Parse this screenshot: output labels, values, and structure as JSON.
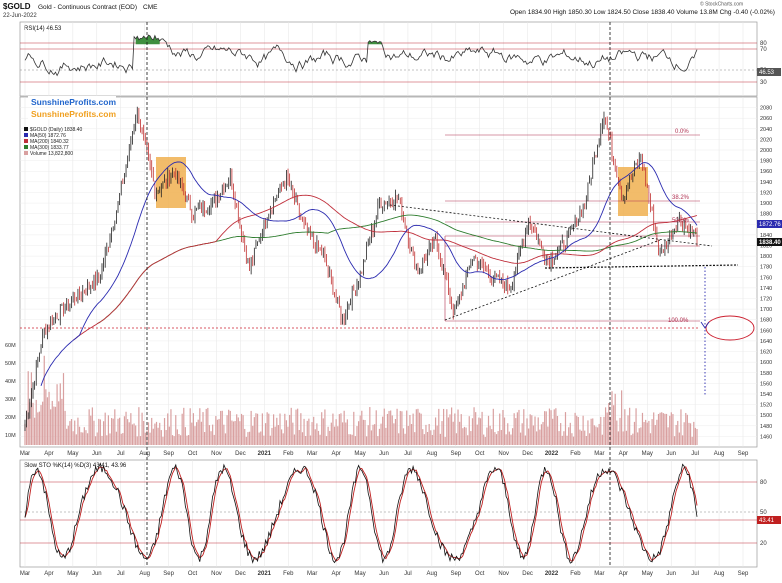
{
  "header": {
    "symbol": "$GOLD",
    "description": "Gold - Continuous Contract (EOD)",
    "exchange": "CME",
    "date": "22-Jun-2022",
    "stats_line": "Open 1834.90  High 1850.30  Low 1824.50  Close 1838.40  Volume 13.8M  Chg -0.40 (-0.02%)",
    "copyright": "© StockCharts.com"
  },
  "watermarks": [
    "SunshineProfits.com",
    "SunshineProfits.com"
  ],
  "colors": {
    "price_up": "#1a1a1a",
    "ma50": "#2b2bb0",
    "ma200": "#c0303c",
    "ma300": "#2f7d2f",
    "volume": "#d9a0a0",
    "fib": "#b03050",
    "rsi": "#333333",
    "rsi_fill": "#3f8f3f",
    "sto_k": "#111111",
    "sto_d": "#c02020",
    "highlight": "#f0b050"
  },
  "rsi_panel": {
    "label": "RSI(14) 46.53",
    "levels": [
      "80",
      "70",
      "50",
      "30"
    ],
    "current_tag": "46.53"
  },
  "price_panel": {
    "legend": [
      {
        "name": "$GOLD (Daily) 1838.40",
        "swatch": "#111111"
      },
      {
        "name": "MA(50) 1872.76",
        "swatch": "#2b2bb0"
      },
      {
        "name": "MA(200) 1840.32",
        "swatch": "#c0303c"
      },
      {
        "name": "MA(300) 1833.77",
        "swatch": "#2f7d2f"
      },
      {
        "name": "Volume 13,822,800",
        "swatch": "#d9a0a0"
      }
    ],
    "fib_labels": [
      "0.0%",
      "38.2%",
      "50.0%",
      "100.0%"
    ],
    "tags": [
      "1872.76",
      "1838.40"
    ],
    "volume_labels": [
      "60M",
      "50M",
      "40M",
      "30M",
      "20M",
      "10M"
    ]
  },
  "sto_panel": {
    "label": "Slow STO %K(14) %D(3) 43.41, 43.96",
    "levels": [
      "80",
      "50",
      "20"
    ],
    "current_tag": "43.41"
  },
  "x_axis_labels": [
    "Mar",
    "Apr",
    "May",
    "Jun",
    "Jul",
    "Aug",
    "Sep",
    "Oct",
    "Nov",
    "Dec",
    "2021",
    "Feb",
    "Mar",
    "Apr",
    "May",
    "Jun",
    "Jul",
    "Aug",
    "Sep",
    "Oct",
    "Nov",
    "Dec",
    "2022",
    "Feb",
    "Mar",
    "Apr",
    "May",
    "Jun",
    "Jul",
    "Aug",
    "Sep"
  ],
  "chart_data": {
    "type": "line",
    "ylabel": "",
    "xlabel": "",
    "ylim": [
      1440,
      2100
    ],
    "y_ticks": [
      2080,
      2060,
      2040,
      2020,
      2000,
      1980,
      1960,
      1940,
      1920,
      1900,
      1880,
      1860,
      1840,
      1820,
      1800,
      1780,
      1760,
      1740,
      1720,
      1700,
      1680,
      1660,
      1640,
      1620,
      1600,
      1580,
      1560,
      1540,
      1520,
      1500,
      1480,
      1460
    ],
    "price_anchor_points": [
      {
        "x": "2020-03",
        "y": 1480
      },
      {
        "x": "2020-03",
        "y": 1660
      },
      {
        "x": "2020-04",
        "y": 1700
      },
      {
        "x": "2020-05",
        "y": 1730
      },
      {
        "x": "2020-06",
        "y": 1760
      },
      {
        "x": "2020-07",
        "y": 1900
      },
      {
        "x": "2020-08",
        "y": 2075
      },
      {
        "x": "2020-08",
        "y": 1920
      },
      {
        "x": "2020-09",
        "y": 1960
      },
      {
        "x": "2020-09",
        "y": 1880
      },
      {
        "x": "2020-10",
        "y": 1900
      },
      {
        "x": "2020-11",
        "y": 1950
      },
      {
        "x": "2020-11",
        "y": 1775
      },
      {
        "x": "2020-12",
        "y": 1880
      },
      {
        "x": "2021",
        "y": 1950
      },
      {
        "x": "2021-01",
        "y": 1850
      },
      {
        "x": "2021-02",
        "y": 1800
      },
      {
        "x": "2021-03",
        "y": 1680
      },
      {
        "x": "2021-04",
        "y": 1770
      },
      {
        "x": "2021-05",
        "y": 1900
      },
      {
        "x": "2021-06",
        "y": 1910
      },
      {
        "x": "2021-06",
        "y": 1770
      },
      {
        "x": "2021-07",
        "y": 1830
      },
      {
        "x": "2021-08",
        "y": 1690
      },
      {
        "x": "2021-08",
        "y": 1800
      },
      {
        "x": "2021-09",
        "y": 1760
      },
      {
        "x": "2021-10",
        "y": 1740
      },
      {
        "x": "2021-11",
        "y": 1870
      },
      {
        "x": "2021-12",
        "y": 1790
      },
      {
        "x": "2022",
        "y": 1830
      },
      {
        "x": "2022-02",
        "y": 1900
      },
      {
        "x": "2022-03",
        "y": 2070
      },
      {
        "x": "2022-03",
        "y": 1910
      },
      {
        "x": "2022-04",
        "y": 1990
      },
      {
        "x": "2022-05",
        "y": 1800
      },
      {
        "x": "2022-06",
        "y": 1870
      },
      {
        "x": "2022-06",
        "y": 1838
      }
    ]
  }
}
